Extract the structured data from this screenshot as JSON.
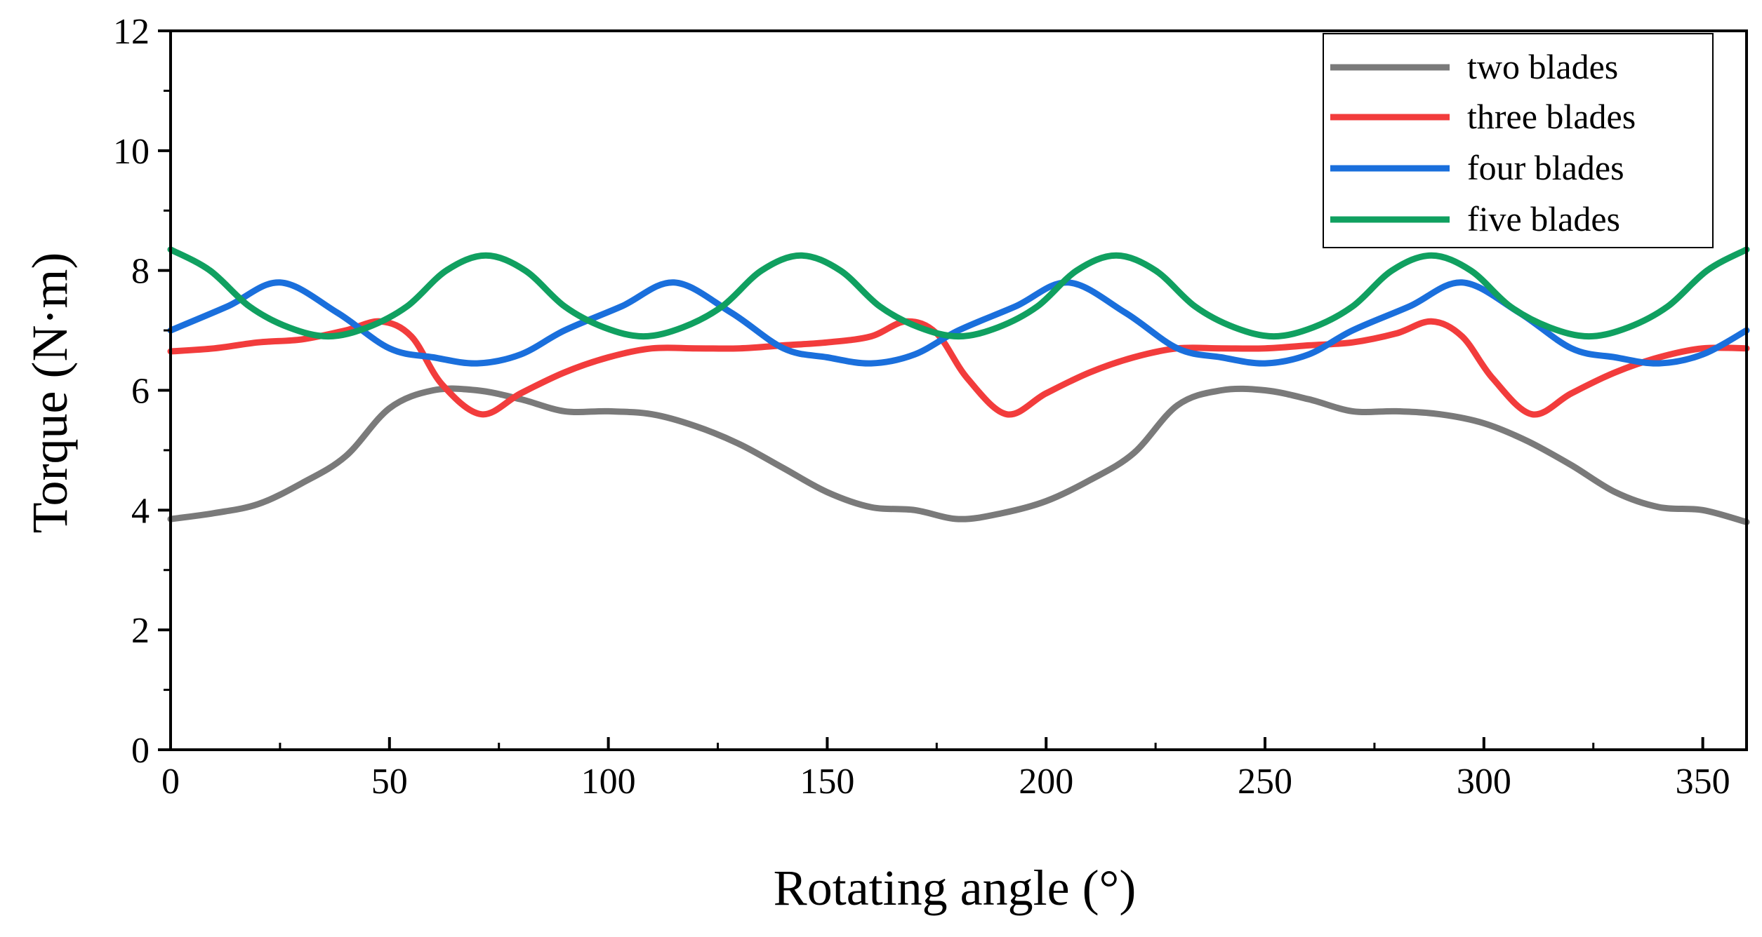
{
  "chart_data": {
    "type": "line",
    "title": "",
    "xlabel": "Rotating angle (°)",
    "ylabel": "Torque (N·m)",
    "xlim": [
      0,
      360
    ],
    "ylim": [
      0,
      12
    ],
    "xticks": [
      0,
      50,
      100,
      150,
      200,
      250,
      300,
      350
    ],
    "yticks": [
      0,
      2,
      4,
      6,
      8,
      10,
      12
    ],
    "xtick_labels": [
      "0",
      "50",
      "100",
      "150",
      "200",
      "250",
      "300",
      "350"
    ],
    "ytick_labels": [
      "0",
      "2",
      "4",
      "6",
      "8",
      "10",
      "12"
    ],
    "grid": false,
    "legend_position": "top-right",
    "series": [
      {
        "name": "two blades",
        "color": "#7a7a7a",
        "x": [
          0,
          10,
          20,
          30,
          40,
          50,
          60,
          70,
          80,
          90,
          100,
          110,
          120,
          130,
          140,
          150,
          160,
          170,
          180,
          190,
          200,
          210,
          220,
          230,
          240,
          250,
          260,
          270,
          280,
          290,
          300,
          310,
          320,
          330,
          340,
          350,
          360
        ],
        "y": [
          3.85,
          3.95,
          4.1,
          4.45,
          4.9,
          5.7,
          6.0,
          6.0,
          5.85,
          5.65,
          5.65,
          5.6,
          5.4,
          5.1,
          4.7,
          4.3,
          4.05,
          4.0,
          3.85,
          3.95,
          4.15,
          4.5,
          4.95,
          5.75,
          6.0,
          6.0,
          5.85,
          5.65,
          5.65,
          5.6,
          5.45,
          5.15,
          4.75,
          4.3,
          4.05,
          4.0,
          3.8
        ]
      },
      {
        "name": "three blades",
        "color": "#f23c3c",
        "x": [
          0,
          10,
          20,
          30,
          40,
          48,
          55,
          62,
          71,
          80,
          90,
          100,
          110,
          120,
          130,
          140,
          150,
          160,
          168,
          175,
          182,
          191,
          200,
          210,
          220,
          230,
          240,
          250,
          260,
          270,
          280,
          288,
          295,
          302,
          311,
          320,
          330,
          340,
          350,
          360
        ],
        "y": [
          6.65,
          6.7,
          6.8,
          6.85,
          7.0,
          7.15,
          6.9,
          6.1,
          5.6,
          5.95,
          6.3,
          6.55,
          6.7,
          6.7,
          6.7,
          6.75,
          6.8,
          6.9,
          7.15,
          6.95,
          6.2,
          5.6,
          5.95,
          6.3,
          6.55,
          6.7,
          6.7,
          6.7,
          6.75,
          6.8,
          6.95,
          7.15,
          6.9,
          6.2,
          5.6,
          5.95,
          6.3,
          6.55,
          6.7,
          6.7
        ]
      },
      {
        "name": "four blades",
        "color": "#1a6fdc",
        "x": [
          0,
          13,
          25,
          38,
          50,
          60,
          70,
          80,
          90,
          103,
          115,
          128,
          140,
          150,
          160,
          170,
          180,
          193,
          205,
          218,
          230,
          240,
          250,
          260,
          270,
          283,
          295,
          308,
          320,
          330,
          340,
          350,
          360
        ],
        "y": [
          7.0,
          7.4,
          7.8,
          7.3,
          6.7,
          6.55,
          6.45,
          6.6,
          7.0,
          7.4,
          7.8,
          7.3,
          6.7,
          6.55,
          6.45,
          6.6,
          7.0,
          7.4,
          7.8,
          7.3,
          6.7,
          6.55,
          6.45,
          6.6,
          7.0,
          7.4,
          7.8,
          7.3,
          6.7,
          6.55,
          6.45,
          6.6,
          7.0
        ]
      },
      {
        "name": "five blades",
        "color": "#10a060",
        "x": [
          0,
          9,
          18,
          27,
          36,
          45,
          54,
          63,
          72,
          81,
          90,
          99,
          108,
          117,
          126,
          135,
          144,
          153,
          162,
          171,
          180,
          189,
          198,
          207,
          216,
          225,
          234,
          243,
          252,
          261,
          270,
          279,
          288,
          297,
          306,
          315,
          324,
          333,
          342,
          351,
          360
        ],
        "y": [
          8.35,
          8.0,
          7.4,
          7.05,
          6.9,
          7.05,
          7.4,
          8.0,
          8.25,
          8.0,
          7.4,
          7.05,
          6.9,
          7.05,
          7.4,
          8.0,
          8.25,
          8.0,
          7.4,
          7.05,
          6.9,
          7.05,
          7.4,
          8.0,
          8.25,
          8.0,
          7.4,
          7.05,
          6.9,
          7.05,
          7.4,
          8.0,
          8.25,
          8.0,
          7.4,
          7.05,
          6.9,
          7.05,
          7.4,
          8.0,
          8.35
        ]
      }
    ]
  }
}
